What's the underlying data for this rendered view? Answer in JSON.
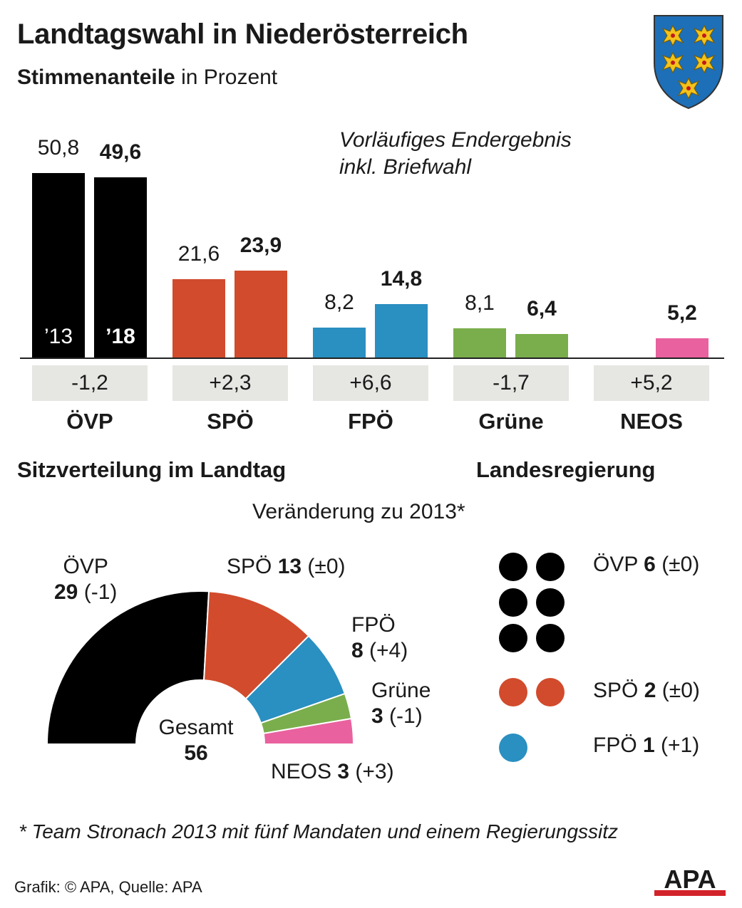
{
  "title": "Landtagswahl in Niederösterreich",
  "subtitle_bold": "Stimmenanteile",
  "subtitle_rest": " in Prozent",
  "note_line1": "Vorläufiges Endergebnis",
  "note_line2": "inkl. Briefwahl",
  "colors": {
    "ovp": "#000000",
    "spo": "#d14b2c",
    "fpo": "#2a8fc1",
    "grune": "#7aae4c",
    "neos": "#e9619e",
    "change_box": "#e6e7e3",
    "apa_red": "#d2232a"
  },
  "chart_data": [
    {
      "type": "bar",
      "title": "Stimmenanteile in Prozent",
      "categories": [
        "ÖVP",
        "SPÖ",
        "FPÖ",
        "Grüne",
        "NEOS"
      ],
      "series": [
        {
          "name": "’13",
          "values": [
            50.8,
            21.6,
            8.2,
            8.1,
            null
          ],
          "labels": [
            "50,8",
            "21,6",
            "8,2",
            "8,1",
            ""
          ]
        },
        {
          "name": "’18",
          "values": [
            49.6,
            23.9,
            14.8,
            6.4,
            5.2
          ],
          "labels": [
            "49,6",
            "23,9",
            "14,8",
            "6,4",
            "5,2"
          ]
        }
      ],
      "change_labels": [
        "-1,2",
        "+2,3",
        "+6,6",
        "-1,7",
        "+5,2"
      ],
      "ylim": [
        0,
        50.8
      ]
    },
    {
      "type": "pie",
      "title": "Sitzverteilung im Landtag",
      "subtitle": "Veränderung zu 2013*",
      "total_label": "Gesamt",
      "total": 56,
      "slices": [
        {
          "party": "ÖVP",
          "seats": 29,
          "change": "(-1)"
        },
        {
          "party": "SPÖ",
          "seats": 13,
          "change": "(±0)"
        },
        {
          "party": "FPÖ",
          "seats": 8,
          "change": "(+4)"
        },
        {
          "party": "Grüne",
          "seats": 3,
          "change": "(-1)"
        },
        {
          "party": "NEOS",
          "seats": 3,
          "change": "(+3)"
        }
      ]
    },
    {
      "type": "table",
      "title": "Landesregierung",
      "rows": [
        {
          "party": "ÖVP",
          "seats": 6,
          "change": "(±0)"
        },
        {
          "party": "SPÖ",
          "seats": 2,
          "change": "(±0)"
        },
        {
          "party": "FPÖ",
          "seats": 1,
          "change": "(+1)"
        }
      ]
    }
  ],
  "footnote": "* Team Stronach 2013 mit fünf Mandaten und einem Regierungssitz",
  "source": "Grafik: © APA, Quelle: APA",
  "logo_text": "APA"
}
